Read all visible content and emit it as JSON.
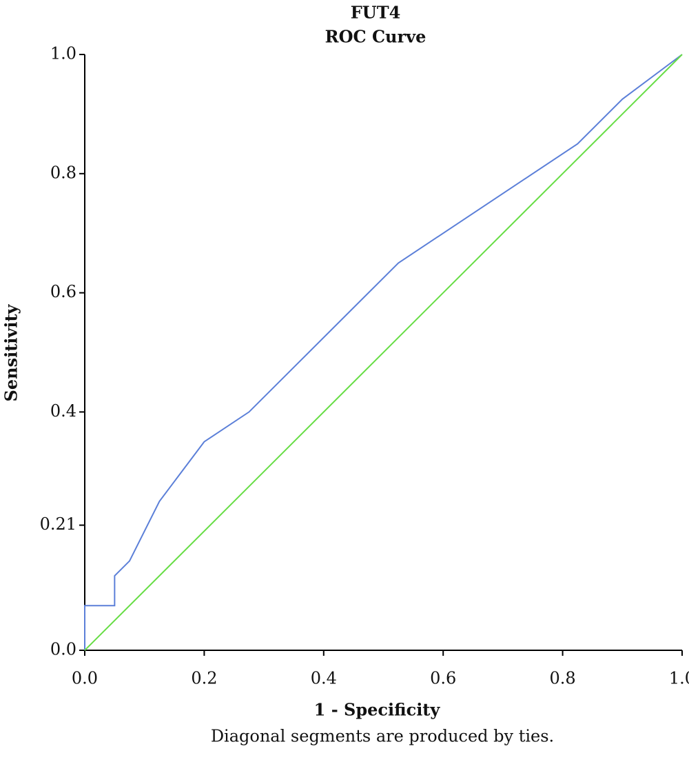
{
  "chart_data": {
    "type": "line",
    "title": "FUT4",
    "subtitle": "ROC Curve",
    "x_label": "1 - Specificity",
    "y_label": "Sensitivity",
    "note": "Diagonal segments are produced by ties.",
    "series": [
      {
        "color": "#5b7fd8",
        "x": [
          0,
          0,
          0.05,
          0.05,
          0.075,
          0.125,
          0.2,
          0.275,
          0.525,
          0.825,
          0.9,
          1
        ],
        "values": [
          0,
          0.075,
          0.075,
          0.125,
          0.15,
          0.25,
          0.35,
          0.4,
          0.65,
          0.85,
          0.925,
          1
        ]
      },
      {
        "color": "#66dd44",
        "x": [
          0,
          1
        ],
        "values": [
          0,
          1
        ]
      }
    ],
    "xlim": [
      0,
      1
    ],
    "ylim": [
      0,
      1
    ],
    "xticks": [
      {
        "value": 0,
        "label": "0.0"
      },
      0.2,
      0.4,
      0.6,
      0.8,
      {
        "value": 1,
        "label": "1.0"
      }
    ],
    "yticks": [
      {
        "value": 0,
        "label": "0.0"
      },
      0.21,
      0.4,
      0.6,
      0.8,
      {
        "value": 1,
        "label": "1.0"
      }
    ],
    "grid": false
  }
}
